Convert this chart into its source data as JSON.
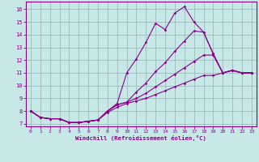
{
  "xlabel": "Windchill (Refroidissement éolien,°C)",
  "bg_color": "#c8e8e8",
  "line_color": "#880088",
  "grid_color": "#99bbbb",
  "x_values": [
    0,
    1,
    2,
    3,
    4,
    5,
    6,
    7,
    8,
    9,
    10,
    11,
    12,
    13,
    14,
    15,
    16,
    17,
    18,
    19,
    20,
    21,
    22,
    23
  ],
  "series": [
    [
      8.0,
      7.5,
      7.4,
      7.4,
      7.1,
      7.1,
      7.2,
      7.3,
      8.0,
      8.6,
      11.0,
      12.1,
      13.4,
      14.9,
      14.4,
      15.7,
      16.2,
      15.0,
      14.2,
      12.5,
      11.0,
      11.2,
      11.0,
      11.0
    ],
    [
      8.0,
      7.5,
      7.4,
      7.4,
      7.1,
      7.1,
      7.2,
      7.3,
      8.0,
      8.5,
      8.7,
      9.5,
      10.2,
      11.1,
      11.8,
      12.7,
      13.5,
      14.3,
      14.2,
      12.5,
      11.0,
      11.2,
      11.0,
      11.0
    ],
    [
      8.0,
      7.5,
      7.4,
      7.4,
      7.1,
      7.1,
      7.2,
      7.3,
      8.0,
      8.5,
      8.7,
      9.0,
      9.4,
      9.9,
      10.4,
      10.9,
      11.4,
      11.9,
      12.4,
      12.4,
      11.0,
      11.2,
      11.0,
      11.0
    ],
    [
      8.0,
      7.5,
      7.4,
      7.4,
      7.1,
      7.1,
      7.2,
      7.3,
      7.9,
      8.3,
      8.6,
      8.8,
      9.0,
      9.3,
      9.6,
      9.9,
      10.2,
      10.5,
      10.8,
      10.8,
      11.0,
      11.2,
      11.0,
      11.0
    ]
  ],
  "ylim": [
    6.8,
    16.6
  ],
  "xlim": [
    -0.5,
    23.5
  ],
  "yticks": [
    7,
    8,
    9,
    10,
    11,
    12,
    13,
    14,
    15,
    16
  ],
  "xticks": [
    0,
    1,
    2,
    3,
    4,
    5,
    6,
    7,
    8,
    9,
    10,
    11,
    12,
    13,
    14,
    15,
    16,
    17,
    18,
    19,
    20,
    21,
    22,
    23
  ]
}
